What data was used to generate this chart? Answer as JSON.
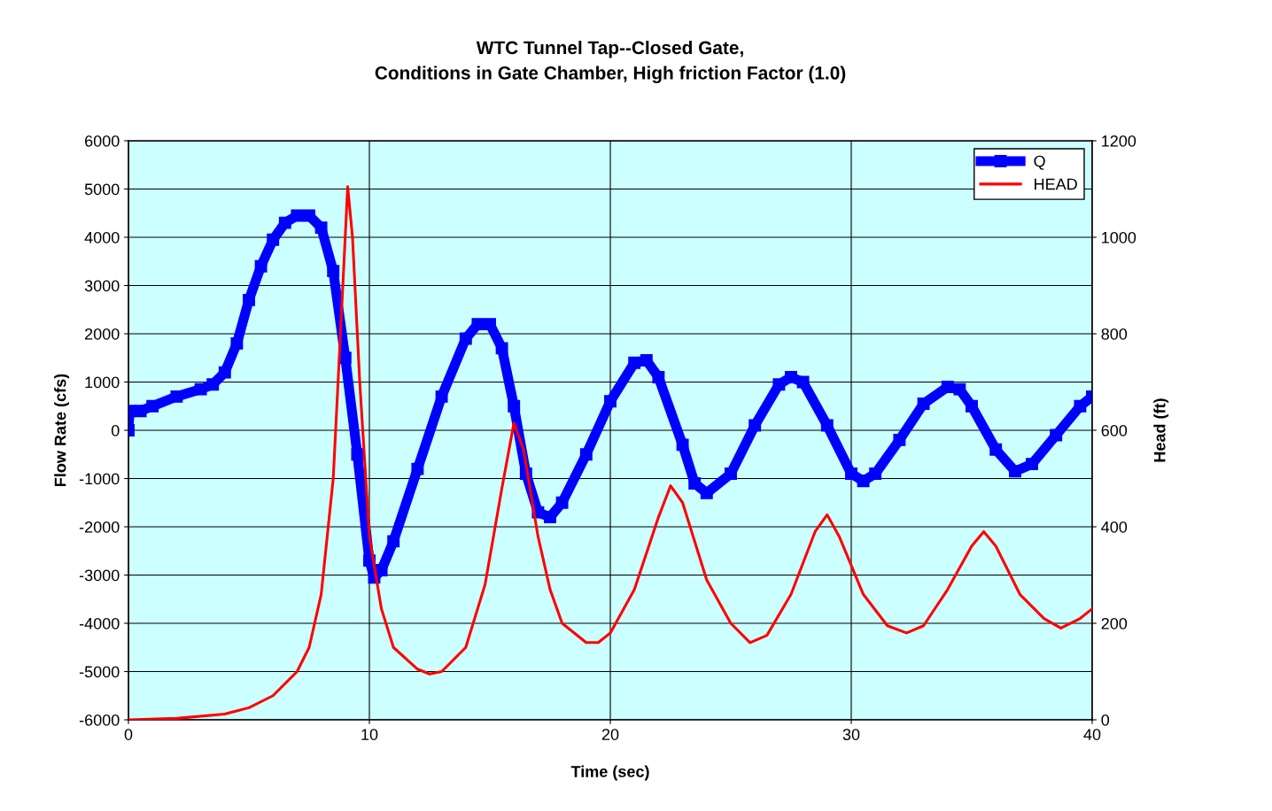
{
  "chart_data": {
    "type": "line",
    "title": "WTC Tunnel Tap--Closed Gate,\nConditions in Gate Chamber, High friction Factor (1.0)",
    "xlabel": "Time (sec)",
    "ylabel": "Flow Rate (cfs)",
    "y2label": "Head (ft)",
    "xlim": [
      0,
      40
    ],
    "xticks": [
      0,
      10,
      20,
      30,
      40
    ],
    "ylim": [
      -6000,
      6000
    ],
    "yticks": [
      -6000,
      -5000,
      -4000,
      -3000,
      -2000,
      -1000,
      0,
      1000,
      2000,
      3000,
      4000,
      5000,
      6000
    ],
    "y2lim": [
      0,
      1200
    ],
    "y2ticks": [
      0,
      200,
      400,
      600,
      800,
      1000,
      1200
    ],
    "grid": true,
    "legend": "top right",
    "series": [
      {
        "name": "Q",
        "color": "#0000ff",
        "marker": "square",
        "x": [
          0,
          0.05,
          0.5,
          1,
          2,
          3,
          3.5,
          4,
          4.5,
          5,
          5.5,
          6,
          6.5,
          7,
          7.5,
          8,
          8.5,
          9,
          9.5,
          10,
          10.2,
          10.5,
          11,
          12,
          13,
          14,
          14.5,
          15,
          15.5,
          16,
          16.5,
          17,
          17.5,
          18,
          19,
          20,
          21,
          21.5,
          22,
          23,
          23.5,
          24,
          25,
          26,
          27,
          27.5,
          28,
          29,
          30,
          30.5,
          31,
          32,
          33,
          34,
          34.5,
          35,
          36,
          36.8,
          37.5,
          38.5,
          39.5,
          40
        ],
        "values": [
          0,
          400,
          400,
          500,
          700,
          850,
          950,
          1200,
          1800,
          2700,
          3400,
          3950,
          4300,
          4450,
          4450,
          4200,
          3300,
          1500,
          -500,
          -2700,
          -3050,
          -2900,
          -2300,
          -800,
          700,
          1900,
          2200,
          2200,
          1700,
          500,
          -900,
          -1700,
          -1800,
          -1500,
          -500,
          600,
          1400,
          1450,
          1100,
          -300,
          -1100,
          -1300,
          -900,
          100,
          950,
          1100,
          1000,
          100,
          -900,
          -1050,
          -900,
          -200,
          550,
          900,
          850,
          500,
          -400,
          -850,
          -700,
          -100,
          500,
          700
        ]
      },
      {
        "name": "HEAD",
        "color": "#ff0000",
        "marker": "none",
        "axis": "y2",
        "x": [
          0,
          2,
          4,
          5,
          6,
          7,
          7.5,
          8,
          8.5,
          8.8,
          9.1,
          9.3,
          9.6,
          10,
          10.5,
          11,
          12,
          12.5,
          13,
          14,
          14.8,
          15.5,
          16,
          16.4,
          17,
          17.5,
          18,
          19,
          19.5,
          20,
          21,
          22,
          22.5,
          23,
          24,
          25,
          25.8,
          26.5,
          27.5,
          28.5,
          29,
          29.5,
          30.5,
          31.5,
          32.3,
          33,
          34,
          35,
          35.5,
          36,
          37,
          38,
          38.7,
          39.5,
          40
        ],
        "values": [
          0,
          3,
          12,
          25,
          50,
          100,
          150,
          260,
          500,
          800,
          1105,
          1000,
          700,
          380,
          230,
          150,
          105,
          95,
          100,
          150,
          280,
          480,
          615,
          560,
          380,
          270,
          200,
          160,
          160,
          180,
          270,
          420,
          485,
          450,
          290,
          200,
          160,
          175,
          260,
          390,
          425,
          380,
          260,
          195,
          180,
          195,
          270,
          360,
          390,
          360,
          260,
          210,
          190,
          210,
          230
        ]
      }
    ]
  }
}
